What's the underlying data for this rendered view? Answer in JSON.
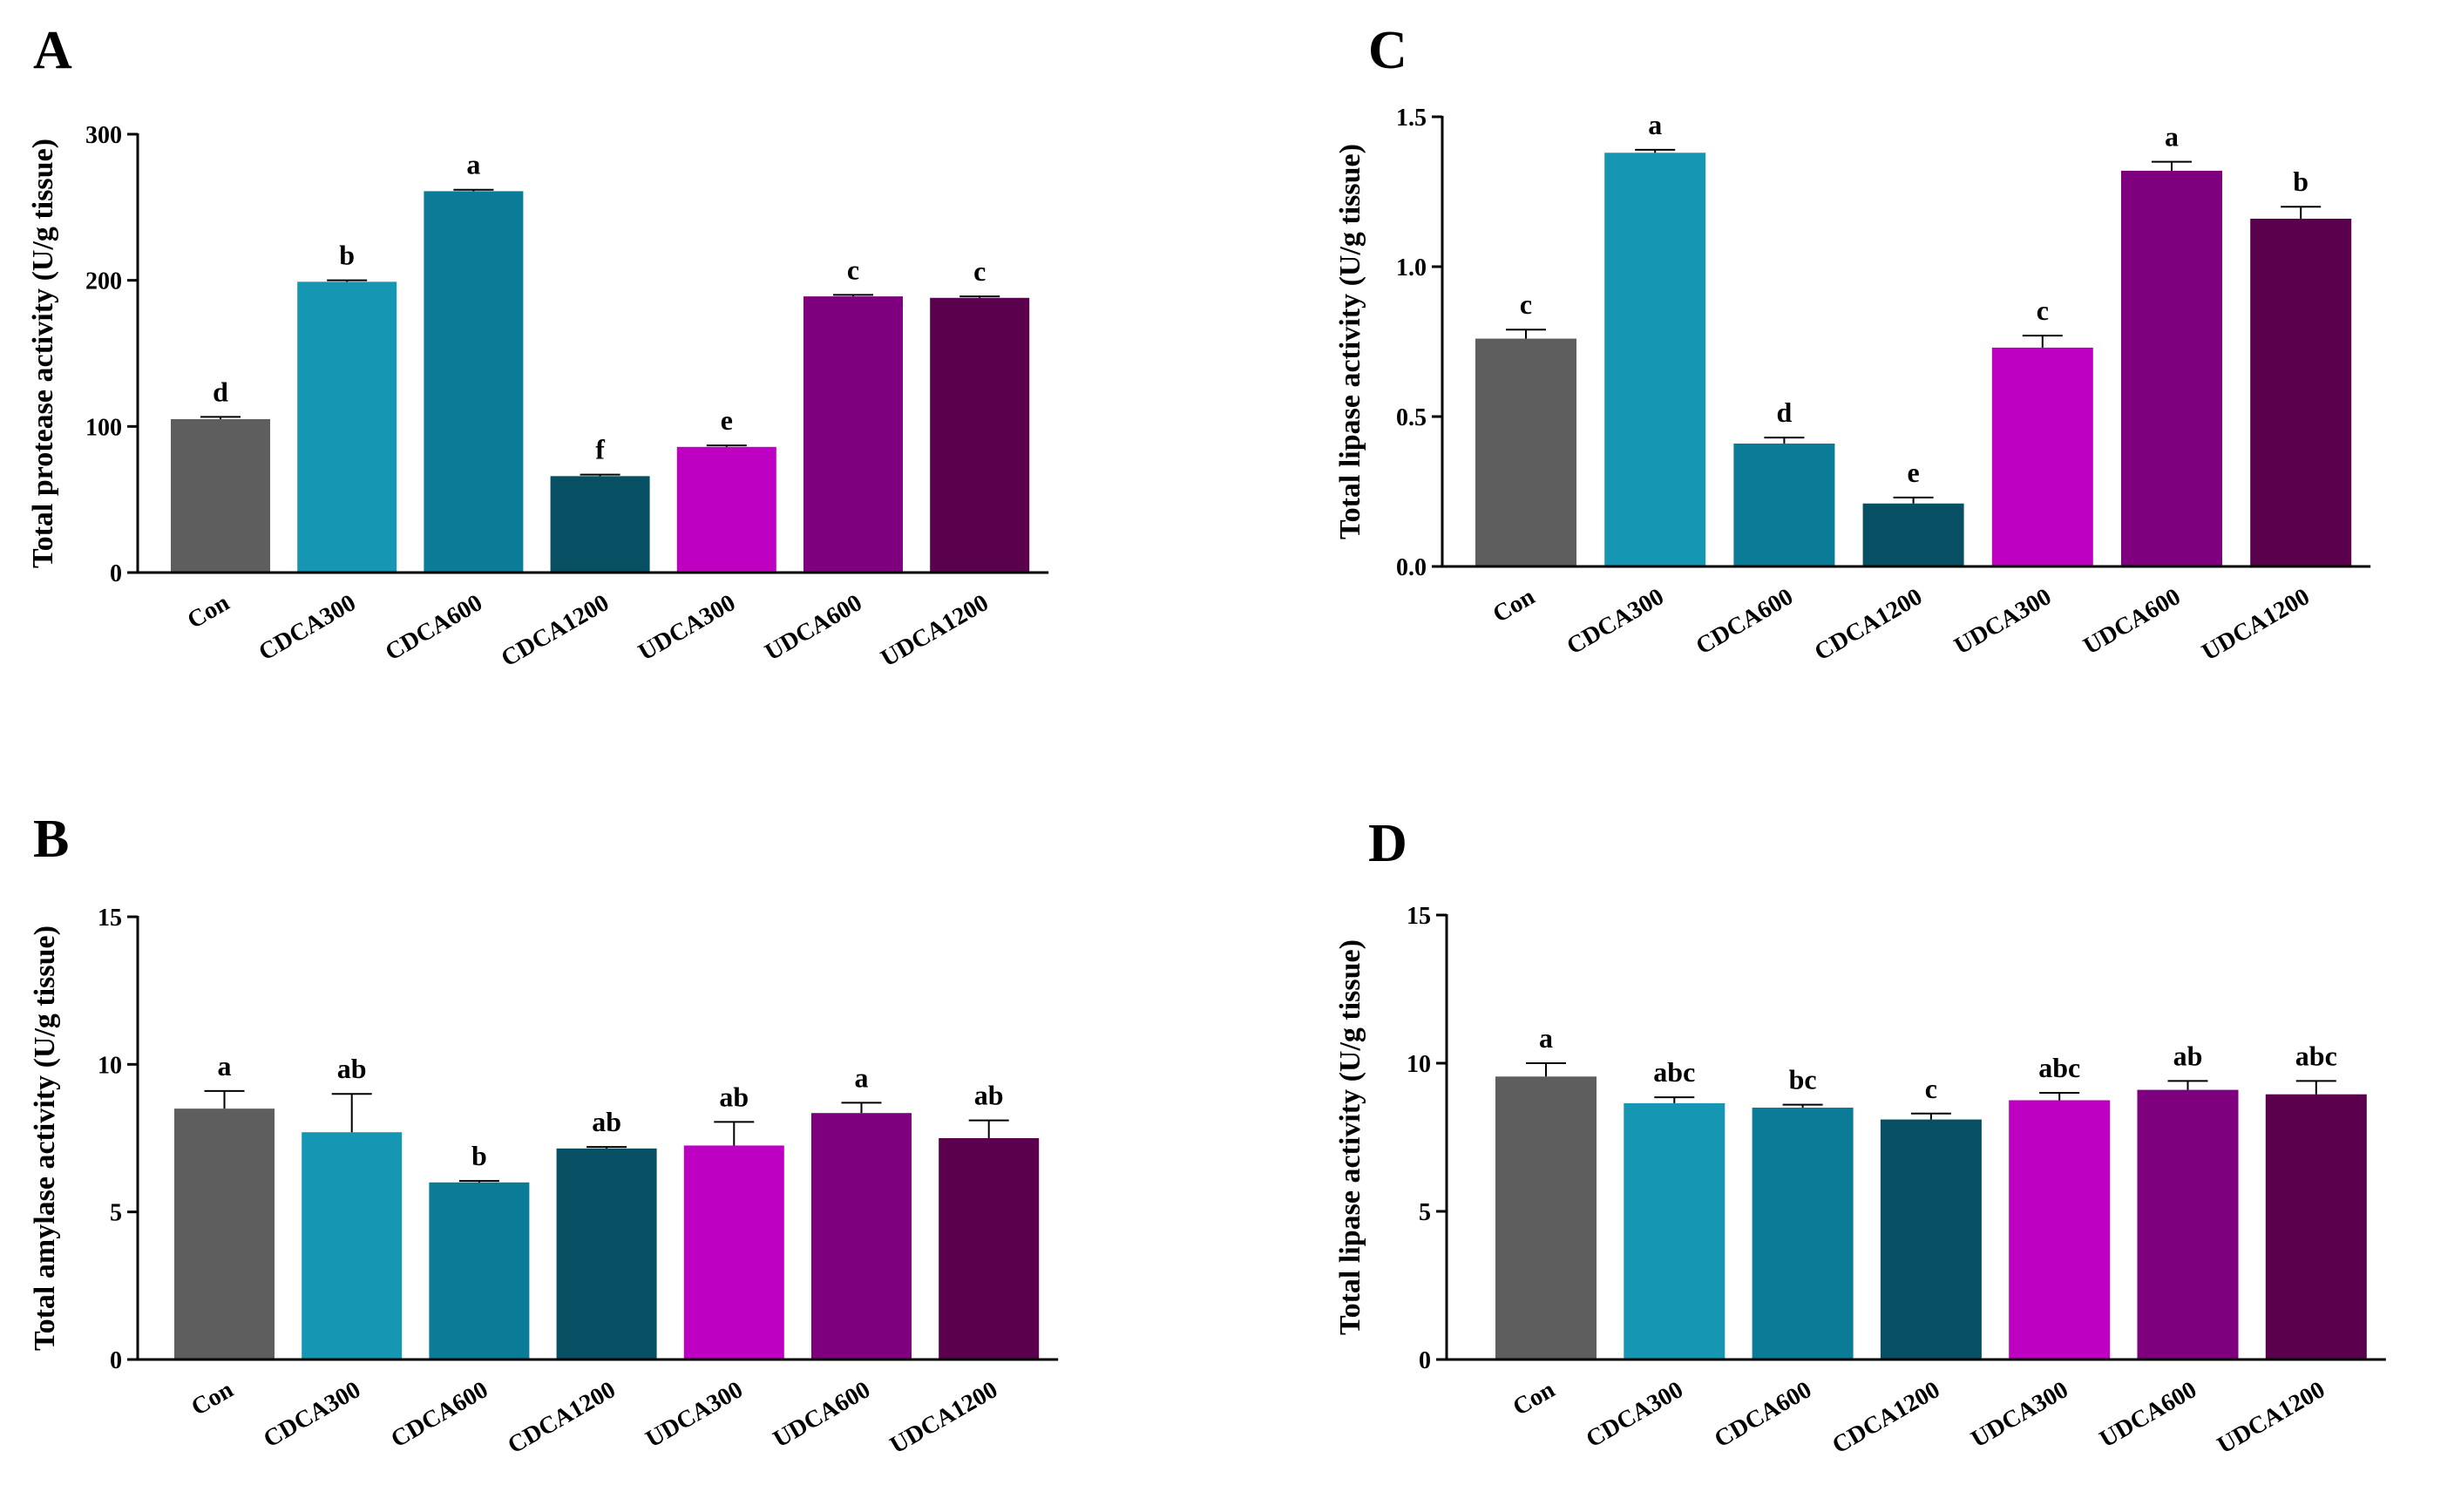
{
  "colors": [
    "#5e5e5e",
    "#1597b4",
    "#0a7c97",
    "#074f63",
    "#bd00c2",
    "#7e007f",
    "#5a004c"
  ],
  "chart_data": [
    {
      "panel": "A",
      "type": "bar",
      "ylabel": "Total protease activity (U/g tissue)",
      "ylim": [
        0,
        300
      ],
      "yticks": [
        0,
        100,
        200,
        300
      ],
      "categories": [
        "Con",
        "CDCA300",
        "CDCA600",
        "CDCA1200",
        "UDCA300",
        "UDCA600",
        "UDCA1200"
      ],
      "values": [
        105,
        199,
        261,
        66,
        86,
        189,
        188
      ],
      "errors": [
        1.5,
        1,
        1,
        1,
        1,
        1,
        1
      ],
      "letters": [
        "d",
        "b",
        "a",
        "f",
        "e",
        "c",
        "c"
      ]
    },
    {
      "panel": "B",
      "type": "bar",
      "ylabel": "Total amylase activity (U/g tissue)",
      "ylim": [
        0,
        15
      ],
      "yticks": [
        0,
        5,
        10,
        15
      ],
      "categories": [
        "Con",
        "CDCA300",
        "CDCA600",
        "CDCA1200",
        "UDCA300",
        "UDCA600",
        "UDCA1200"
      ],
      "values": [
        8.5,
        7.7,
        6.0,
        7.15,
        7.25,
        8.35,
        7.5
      ],
      "errors": [
        0.6,
        1.3,
        0.05,
        0.05,
        0.8,
        0.35,
        0.6
      ],
      "letters": [
        "a",
        "ab",
        "b",
        "ab",
        "ab",
        "a",
        "ab"
      ]
    },
    {
      "panel": "C",
      "type": "bar",
      "ylabel": "Total lipase activity (U/g tissue)",
      "ylim": [
        0,
        1.5
      ],
      "yticks": [
        "0.0",
        "0.5",
        "1.0",
        "1.5"
      ],
      "categories": [
        "Con",
        "CDCA300",
        "CDCA600",
        "CDCA1200",
        "UDCA300",
        "UDCA600",
        "UDCA1200"
      ],
      "values": [
        0.76,
        1.38,
        0.41,
        0.21,
        0.73,
        1.32,
        1.16
      ],
      "errors": [
        0.03,
        0.01,
        0.02,
        0.02,
        0.04,
        0.03,
        0.04
      ],
      "letters": [
        "c",
        "a",
        "d",
        "e",
        "c",
        "a",
        "b"
      ]
    },
    {
      "panel": "D",
      "type": "bar",
      "ylabel": "Total lipase activity (U/g tissue)",
      "ylim": [
        0,
        15
      ],
      "yticks": [
        0,
        5,
        10,
        15
      ],
      "categories": [
        "Con",
        "CDCA300",
        "CDCA600",
        "CDCA1200",
        "UDCA300",
        "UDCA600",
        "UDCA1200"
      ],
      "values": [
        9.55,
        8.65,
        8.5,
        8.1,
        8.75,
        9.1,
        8.95
      ],
      "errors": [
        0.45,
        0.2,
        0.1,
        0.2,
        0.25,
        0.3,
        0.45
      ],
      "letters": [
        "a",
        "abc",
        "bc",
        "c",
        "abc",
        "ab",
        "abc"
      ]
    }
  ]
}
